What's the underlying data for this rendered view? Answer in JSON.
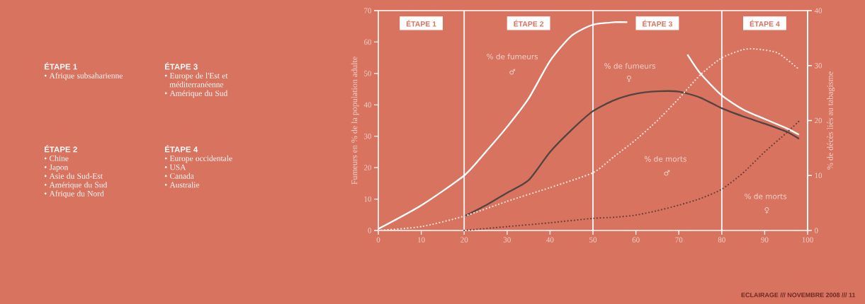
{
  "chart_data": [
    {
      "type": "other",
      "title": "ÉTAPE 1",
      "annotations": [
        "• Afrique subsaharienne"
      ]
    },
    {
      "type": "other",
      "title": "ÉTAPE 3",
      "annotations": [
        "• Europe de l'Est et méditerranéenne",
        "• Amérique du Sud"
      ]
    },
    {
      "type": "other",
      "title": "ÉTAPE 2",
      "annotations": [
        "• Chine",
        "• Japon",
        "• Asie du Sud-Est",
        "• Amérique du Sud",
        "• Afrique du Nord"
      ]
    },
    {
      "type": "other",
      "title": "ÉTAPE 4",
      "annotations": [
        "• Europe occidentale",
        "• USA",
        "• Canada",
        "• Australie"
      ]
    },
    {
      "type": "line",
      "ylabel": "Fumeurs en % de la population adulte",
      "y2label": "% de décès liés au tabagisme",
      "xlim": [
        0,
        100
      ],
      "xticks": [
        0,
        10,
        20,
        30,
        40,
        50,
        60,
        70,
        80,
        90,
        100
      ],
      "ylim": [
        0,
        70
      ],
      "yticks": [
        0,
        10,
        20,
        30,
        40,
        50,
        60,
        70
      ],
      "y2lim": [
        0,
        40
      ],
      "y2ticks": [
        0,
        10,
        20,
        30,
        40
      ],
      "grid": false,
      "series": [
        {
          "color": "#ffffff",
          "line_style": "solid",
          "x": [
            0,
            10,
            20,
            25,
            30,
            35,
            40,
            45,
            50,
            55,
            58,
            63,
            68,
            72,
            75,
            80,
            85,
            90,
            95,
            98
          ],
          "values": [
            0.5,
            8,
            17.5,
            25,
            33,
            42,
            54,
            62,
            65.5,
            66.3,
            66.3,
            null,
            null,
            56,
            50,
            43,
            38.5,
            35.5,
            32.6,
            30.5
          ]
        },
        {
          "color": "#544440",
          "line_style": "solid",
          "x": [
            20,
            25,
            30,
            35,
            40,
            45,
            50,
            55,
            60,
            65,
            70,
            75,
            80,
            85,
            90,
            95,
            98
          ],
          "values": [
            4.5,
            8,
            12,
            16,
            25,
            32,
            38,
            41.5,
            43.5,
            44.3,
            44.2,
            42.3,
            38.9,
            36.3,
            34,
            31.5,
            29.2
          ]
        },
        {
          "color": "#fbe3dc",
          "line_style": "dotted",
          "axis": "y2",
          "x": [
            0,
            10,
            20,
            30,
            40,
            50,
            55,
            60,
            65,
            70,
            75,
            80,
            85,
            88,
            93,
            98
          ],
          "values": [
            0,
            0.7,
            2.6,
            5.3,
            7.8,
            10.5,
            13.5,
            16.5,
            20,
            24,
            28.3,
            31.4,
            32.9,
            33,
            32.3,
            29.3
          ]
        },
        {
          "color": "#6e4038",
          "line_style": "dotted",
          "axis": "y2",
          "x": [
            20,
            30,
            40,
            50,
            55,
            60,
            65,
            70,
            75,
            80,
            85,
            90,
            95,
            98
          ],
          "values": [
            0,
            0.7,
            1.4,
            2.2,
            2.4,
            2.8,
            3.6,
            4.6,
            5.8,
            7.5,
            10.5,
            14.3,
            17.7,
            19.9
          ]
        }
      ],
      "ref_lines": [
        {
          "axis": "x",
          "value": 20,
          "color": "#ffffff"
        },
        {
          "axis": "x",
          "value": 50,
          "color": "#ffffff"
        },
        {
          "axis": "x",
          "value": 80,
          "color": "#ffffff"
        }
      ],
      "annotations": [
        "ÉTAPE 1",
        "ÉTAPE 2",
        "ÉTAPE 3",
        "ÉTAPE 4",
        "% de fumeurs",
        "♂",
        "% de fumeurs",
        "♀",
        "% de morts",
        "♂",
        "% de morts",
        "♀",
        "ECLAIRAGE /// NOVEMBRE 2008 /// 11"
      ]
    }
  ]
}
